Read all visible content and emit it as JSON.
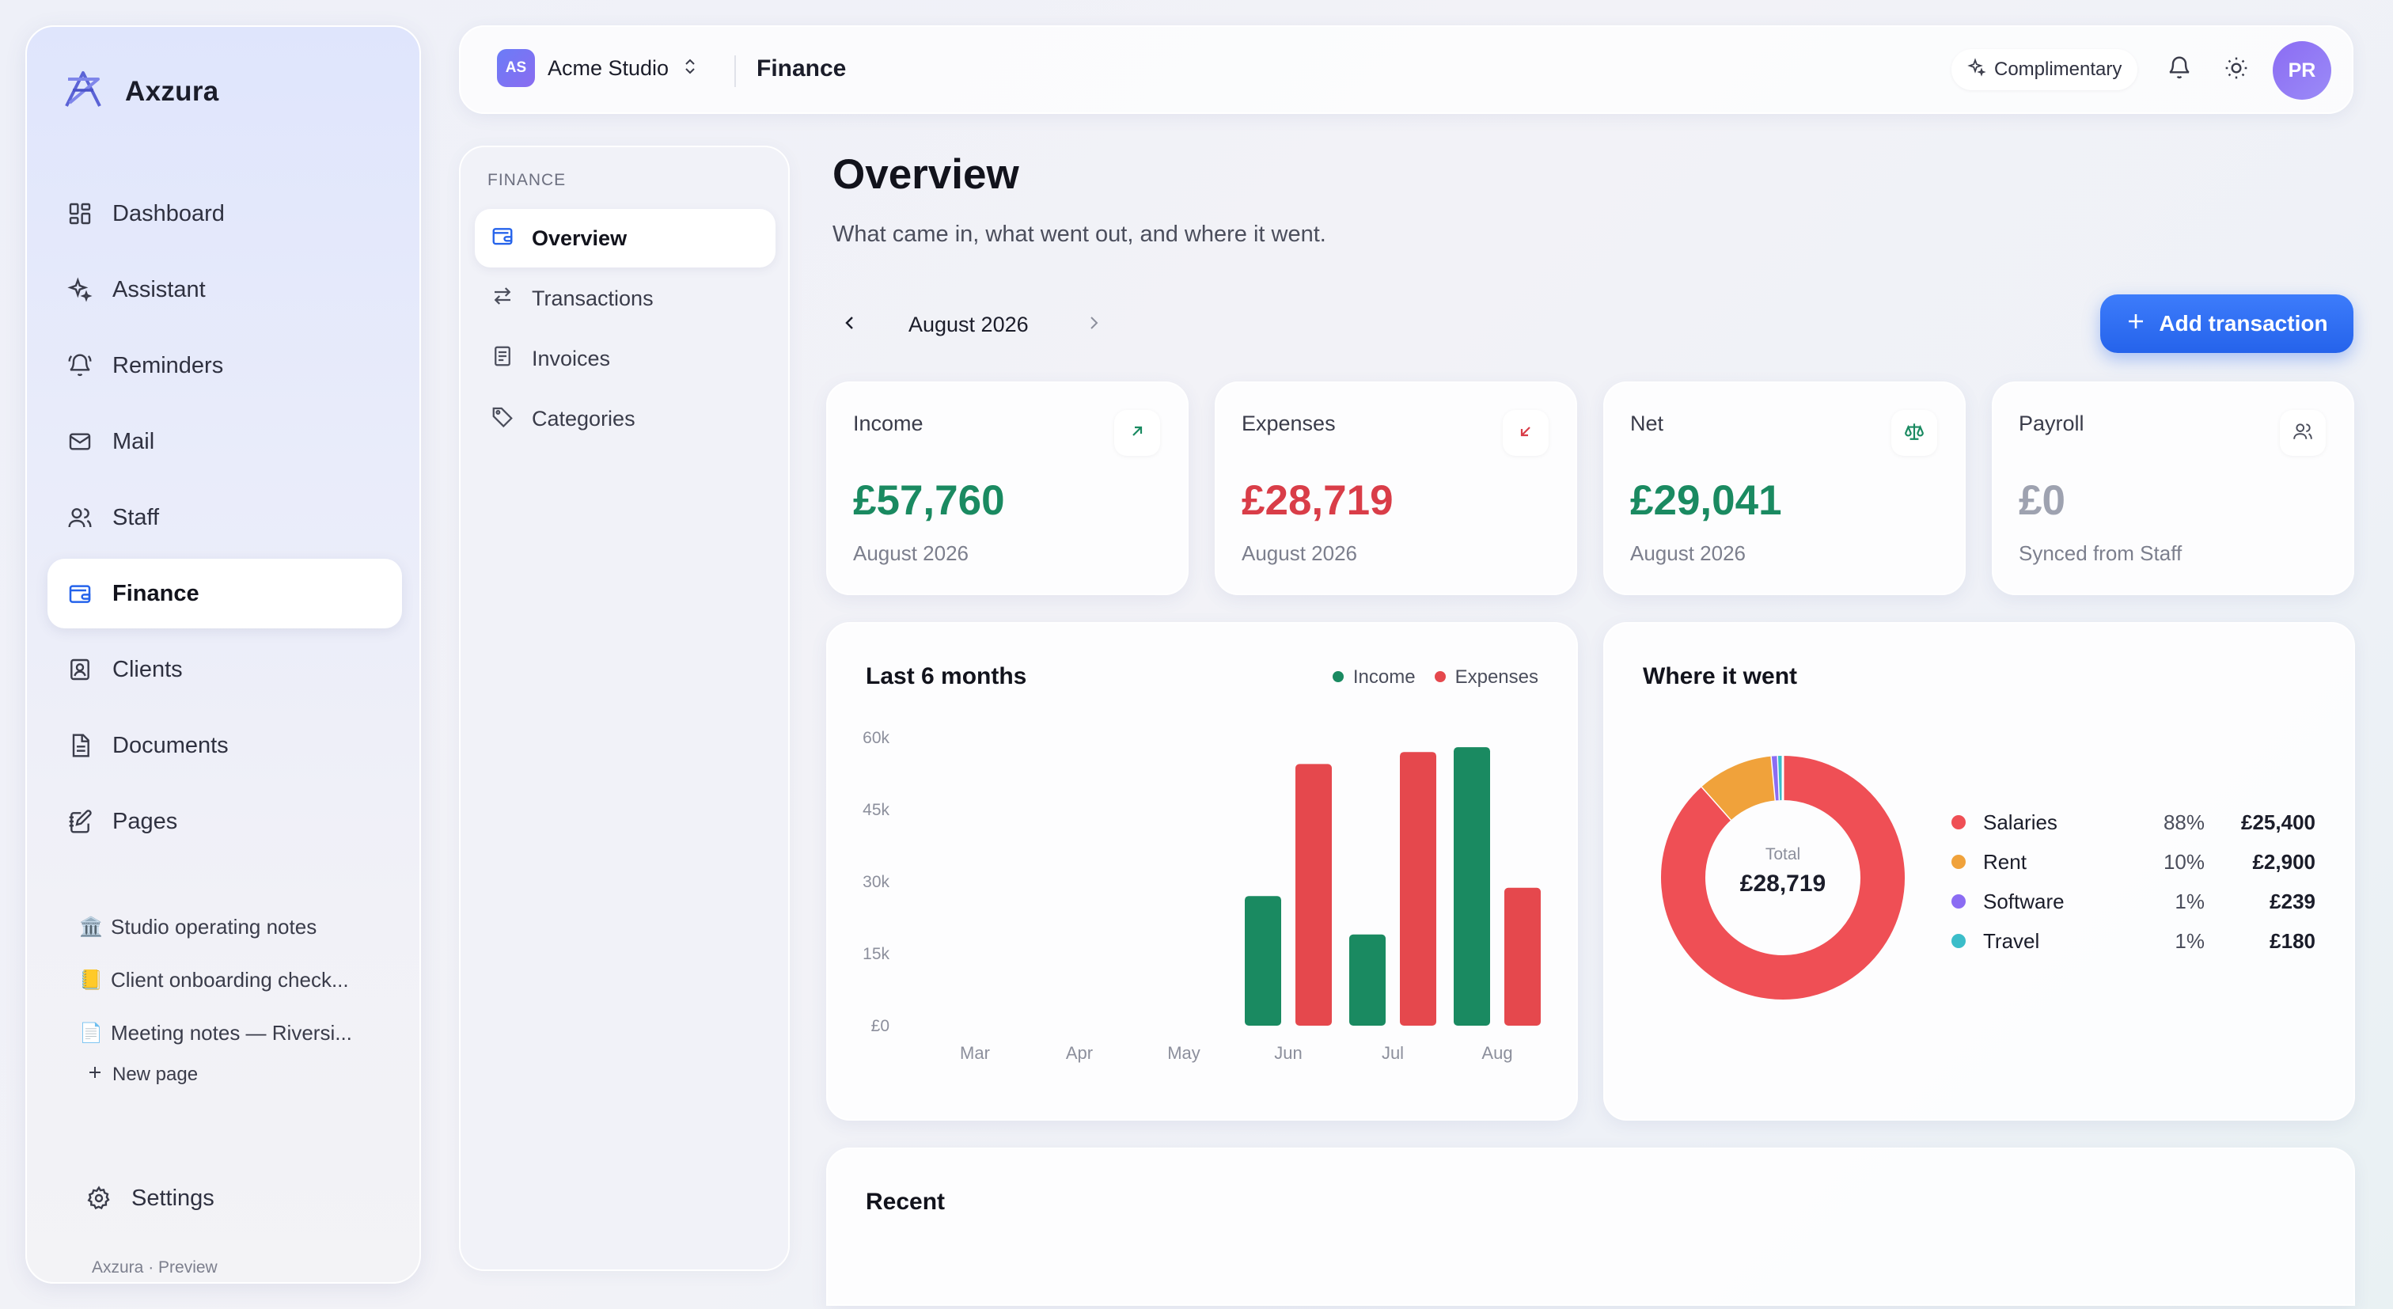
{
  "app": {
    "name": "Axzura",
    "footer": "Axzura · Preview"
  },
  "sidebar": {
    "items": [
      {
        "label": "Dashboard",
        "icon": "grid-icon"
      },
      {
        "label": "Assistant",
        "icon": "sparkles-icon"
      },
      {
        "label": "Reminders",
        "icon": "bell-ring-icon"
      },
      {
        "label": "Mail",
        "icon": "mail-icon"
      },
      {
        "label": "Staff",
        "icon": "users-icon"
      },
      {
        "label": "Finance",
        "icon": "wallet-icon",
        "active": true
      },
      {
        "label": "Clients",
        "icon": "contact-icon"
      },
      {
        "label": "Documents",
        "icon": "document-icon"
      },
      {
        "label": "Pages",
        "icon": "notebook-pen-icon"
      }
    ],
    "pages": [
      {
        "emoji": "🏛️",
        "label": "Studio operating notes"
      },
      {
        "emoji": "📒",
        "label": "Client onboarding check..."
      },
      {
        "emoji": "📄",
        "label": "Meeting notes — Riversi..."
      }
    ],
    "new_page": "New page",
    "settings": "Settings"
  },
  "topbar": {
    "workspace_badge": "AS",
    "workspace_name": "Acme Studio",
    "title": "Finance",
    "plan_label": "Complimentary",
    "avatar": "PR"
  },
  "subnav": {
    "heading": "FINANCE",
    "items": [
      "Overview",
      "Transactions",
      "Invoices",
      "Categories"
    ]
  },
  "main": {
    "title": "Overview",
    "subtitle": "What came in, what went out, and where it went.",
    "month": "August 2026",
    "add_button": "Add transaction"
  },
  "stats": [
    {
      "label": "Income",
      "value": "£57,760",
      "foot": "August 2026",
      "color": "#1a8a61",
      "icon": "arrow-up-right-icon"
    },
    {
      "label": "Expenses",
      "value": "£28,719",
      "foot": "August 2026",
      "color": "#d93d48",
      "icon": "arrow-down-left-icon"
    },
    {
      "label": "Net",
      "value": "£29,041",
      "foot": "August 2026",
      "color": "#1a8a61",
      "icon": "scale-icon"
    },
    {
      "label": "Payroll",
      "value": "£0",
      "foot": "Synced from Staff",
      "color": "#9ea2b0",
      "icon": "users-icon"
    }
  ],
  "chart_title": "Last 6 months",
  "chart_data": {
    "type": "bar",
    "categories": [
      "Mar",
      "Apr",
      "May",
      "Jun",
      "Jul",
      "Aug"
    ],
    "series": [
      {
        "name": "Income",
        "color": "#1a8a61",
        "values": [
          0,
          0,
          0,
          27000,
          19000,
          58000
        ]
      },
      {
        "name": "Expenses",
        "color": "#e5484d",
        "values": [
          0,
          0,
          0,
          54500,
          57000,
          28719
        ]
      }
    ],
    "yticks": [
      "60k",
      "45k",
      "30k",
      "15k",
      "£0"
    ],
    "ylim": [
      0,
      60000
    ]
  },
  "donut": {
    "title": "Where it went",
    "center_label": "Total",
    "center_value": "£28,719",
    "slices": [
      {
        "name": "Salaries",
        "pct": "88%",
        "amount": "£25,400",
        "value": 25400,
        "color": "#ef4f55"
      },
      {
        "name": "Rent",
        "pct": "10%",
        "amount": "£2,900",
        "value": 2900,
        "color": "#f0a23b"
      },
      {
        "name": "Software",
        "pct": "1%",
        "amount": "£239",
        "value": 239,
        "color": "#8b6cf3"
      },
      {
        "name": "Travel",
        "pct": "1%",
        "amount": "£180",
        "value": 180,
        "color": "#3bbdc9"
      }
    ]
  },
  "recent": {
    "title": "Recent"
  }
}
